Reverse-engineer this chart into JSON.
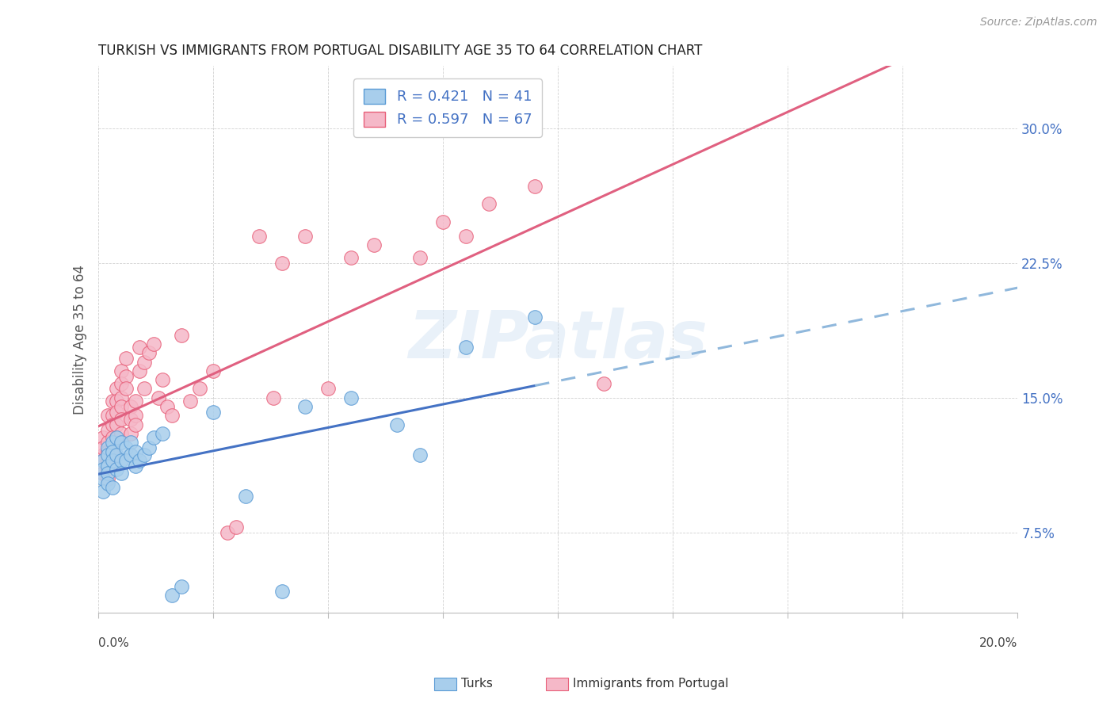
{
  "title": "TURKISH VS IMMIGRANTS FROM PORTUGAL DISABILITY AGE 35 TO 64 CORRELATION CHART",
  "source": "Source: ZipAtlas.com",
  "ylabel": "Disability Age 35 to 64",
  "ytick_labels": [
    "7.5%",
    "15.0%",
    "22.5%",
    "30.0%"
  ],
  "ytick_vals": [
    0.075,
    0.15,
    0.225,
    0.3
  ],
  "xmin": 0.0,
  "xmax": 0.2,
  "ymin": 0.03,
  "ymax": 0.335,
  "legend_r_blue": "R = 0.421   N = 41",
  "legend_r_pink": "R = 0.597   N = 67",
  "color_turks_fill": "#A8CEEC",
  "color_turks_edge": "#5B9BD5",
  "color_portugal_fill": "#F5B8C8",
  "color_portugal_edge": "#E8607A",
  "color_turks_line": "#4472C4",
  "color_portugal_line": "#E06080",
  "color_dashed": "#90B8DC",
  "watermark_text": "ZIPatlas",
  "turks_x": [
    0.001,
    0.001,
    0.001,
    0.001,
    0.002,
    0.002,
    0.002,
    0.002,
    0.002,
    0.003,
    0.003,
    0.003,
    0.003,
    0.004,
    0.004,
    0.004,
    0.005,
    0.005,
    0.005,
    0.006,
    0.006,
    0.007,
    0.007,
    0.008,
    0.008,
    0.009,
    0.01,
    0.011,
    0.012,
    0.014,
    0.016,
    0.018,
    0.025,
    0.032,
    0.04,
    0.045,
    0.055,
    0.065,
    0.07,
    0.08,
    0.095
  ],
  "turks_y": [
    0.115,
    0.11,
    0.105,
    0.098,
    0.122,
    0.118,
    0.112,
    0.108,
    0.102,
    0.125,
    0.12,
    0.115,
    0.1,
    0.128,
    0.118,
    0.11,
    0.125,
    0.115,
    0.108,
    0.122,
    0.115,
    0.125,
    0.118,
    0.12,
    0.112,
    0.115,
    0.118,
    0.122,
    0.128,
    0.13,
    0.04,
    0.045,
    0.142,
    0.095,
    0.042,
    0.145,
    0.15,
    0.135,
    0.118,
    0.178,
    0.195
  ],
  "portugal_x": [
    0.001,
    0.001,
    0.001,
    0.001,
    0.001,
    0.002,
    0.002,
    0.002,
    0.002,
    0.002,
    0.002,
    0.002,
    0.003,
    0.003,
    0.003,
    0.003,
    0.003,
    0.003,
    0.004,
    0.004,
    0.004,
    0.004,
    0.004,
    0.005,
    0.005,
    0.005,
    0.005,
    0.005,
    0.005,
    0.006,
    0.006,
    0.006,
    0.007,
    0.007,
    0.007,
    0.008,
    0.008,
    0.008,
    0.009,
    0.009,
    0.01,
    0.01,
    0.011,
    0.012,
    0.013,
    0.014,
    0.015,
    0.016,
    0.018,
    0.02,
    0.022,
    0.025,
    0.028,
    0.03,
    0.035,
    0.038,
    0.04,
    0.045,
    0.05,
    0.055,
    0.06,
    0.07,
    0.075,
    0.08,
    0.085,
    0.095,
    0.11
  ],
  "portugal_y": [
    0.118,
    0.128,
    0.115,
    0.122,
    0.108,
    0.14,
    0.132,
    0.125,
    0.12,
    0.115,
    0.11,
    0.105,
    0.148,
    0.14,
    0.135,
    0.128,
    0.122,
    0.118,
    0.155,
    0.148,
    0.142,
    0.135,
    0.128,
    0.165,
    0.158,
    0.15,
    0.145,
    0.138,
    0.13,
    0.172,
    0.162,
    0.155,
    0.145,
    0.138,
    0.13,
    0.148,
    0.14,
    0.135,
    0.178,
    0.165,
    0.17,
    0.155,
    0.175,
    0.18,
    0.15,
    0.16,
    0.145,
    0.14,
    0.185,
    0.148,
    0.155,
    0.165,
    0.075,
    0.078,
    0.24,
    0.15,
    0.225,
    0.24,
    0.155,
    0.228,
    0.235,
    0.228,
    0.248,
    0.24,
    0.258,
    0.268,
    0.158
  ]
}
